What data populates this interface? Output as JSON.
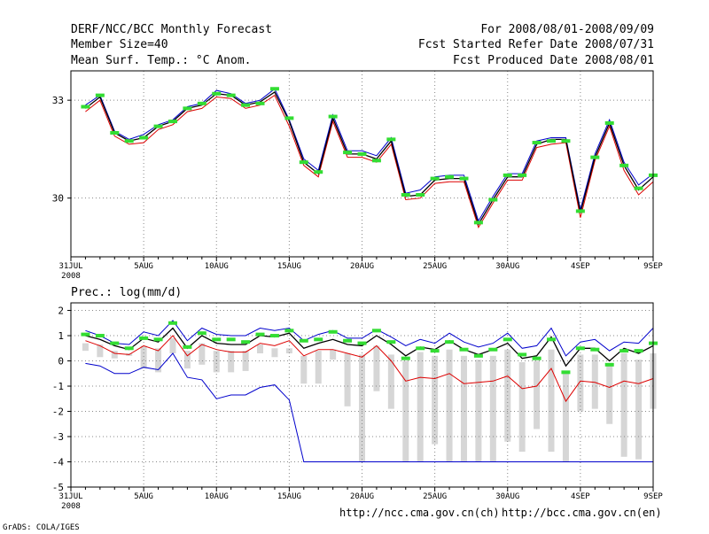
{
  "header": {
    "title": "DERF/NCC/BCC Monthly Forecast",
    "member_size": "Member Size=40",
    "variable": "Mean Surf. Temp.: °C Anom.",
    "period": "For 2008/08/01-2008/09/09",
    "started": "Fcst Started Refer Date 2008/07/31",
    "produced": "Fcst Produced Date 2008/08/01"
  },
  "footer": {
    "url_ncc": "http://ncc.cma.gov.cn(ch)",
    "url_bcc": "http://bcc.cma.gov.cn(en)",
    "credit": "GrADS: COLA/IGES"
  },
  "colors": {
    "mean": "#000000",
    "upper": "#0000cc",
    "lower": "#dd0000",
    "obs": "#33dd33",
    "bar": "#d6d6d6",
    "grid": "#888888"
  },
  "chart_data": [
    {
      "type": "line",
      "title": "Mean Surf. Temp.",
      "ylim": [
        28.2,
        33.9
      ],
      "yticks": [
        30,
        33
      ],
      "x_tick_labels": [
        "31JUL",
        "5AUG",
        "10AUG",
        "15AUG",
        "20AUG",
        "25AUG",
        "30AUG",
        "4SEP",
        "9SEP"
      ],
      "x_tick_days": [
        0,
        5,
        10,
        15,
        20,
        25,
        30,
        35,
        40
      ],
      "year_label": "2008",
      "days": [
        1,
        2,
        3,
        4,
        5,
        6,
        7,
        8,
        9,
        10,
        11,
        12,
        13,
        14,
        15,
        16,
        17,
        18,
        19,
        20,
        21,
        22,
        23,
        24,
        25,
        26,
        27,
        28,
        29,
        30,
        31,
        32,
        33,
        34,
        35,
        36,
        37,
        38,
        39,
        40
      ],
      "series": [
        {
          "name": "mean",
          "values": [
            32.75,
            33.1,
            32.0,
            31.75,
            31.85,
            32.2,
            32.35,
            32.75,
            32.85,
            33.2,
            33.15,
            32.85,
            32.95,
            33.25,
            32.35,
            31.1,
            30.75,
            32.45,
            31.35,
            31.35,
            31.2,
            31.75,
            30.05,
            30.1,
            30.55,
            30.6,
            30.6,
            29.2,
            29.95,
            30.65,
            30.65,
            31.65,
            31.8,
            31.8,
            29.55,
            31.25,
            32.3,
            31.0,
            30.25,
            30.65
          ]
        },
        {
          "name": "upper",
          "values": [
            32.85,
            33.15,
            32.05,
            31.8,
            31.95,
            32.25,
            32.4,
            32.8,
            32.9,
            33.3,
            33.2,
            32.9,
            33.0,
            33.35,
            32.4,
            31.2,
            30.85,
            32.55,
            31.45,
            31.45,
            31.3,
            31.85,
            30.15,
            30.25,
            30.65,
            30.7,
            30.7,
            29.3,
            30.05,
            30.75,
            30.75,
            31.75,
            31.85,
            31.85,
            29.65,
            31.35,
            32.4,
            31.1,
            30.4,
            30.75
          ]
        },
        {
          "name": "lower",
          "values": [
            32.65,
            33.0,
            31.9,
            31.65,
            31.7,
            32.1,
            32.25,
            32.65,
            32.75,
            33.1,
            33.05,
            32.75,
            32.85,
            33.15,
            32.2,
            31.0,
            30.65,
            32.35,
            31.25,
            31.25,
            31.1,
            31.65,
            29.95,
            30.0,
            30.45,
            30.5,
            30.5,
            29.1,
            29.85,
            30.55,
            30.55,
            31.55,
            31.65,
            31.7,
            29.4,
            31.15,
            32.2,
            30.85,
            30.1,
            30.5
          ]
        }
      ],
      "observed": [
        32.8,
        33.15,
        32.0,
        31.75,
        31.85,
        32.2,
        32.35,
        32.75,
        32.9,
        33.2,
        33.15,
        32.85,
        32.9,
        33.35,
        32.45,
        31.1,
        30.8,
        32.5,
        31.4,
        31.35,
        31.15,
        31.8,
        30.1,
        30.1,
        30.6,
        30.65,
        30.6,
        29.25,
        29.95,
        30.7,
        30.7,
        31.7,
        31.75,
        31.75,
        29.6,
        31.25,
        32.3,
        31.0,
        30.3,
        30.7
      ]
    },
    {
      "type": "line",
      "title": "Prec.: log(mm/d)",
      "ylim": [
        -5,
        2.3
      ],
      "yticks": [
        -5,
        -4,
        -3,
        -2,
        -1,
        0,
        1,
        2
      ],
      "x_tick_labels": [
        "31JUL",
        "5AUG",
        "10AUG",
        "15AUG",
        "20AUG",
        "25AUG",
        "30AUG",
        "4SEP",
        "9SEP"
      ],
      "x_tick_days": [
        0,
        5,
        10,
        15,
        20,
        25,
        30,
        35,
        40
      ],
      "year_label": "2008",
      "days": [
        1,
        2,
        3,
        4,
        5,
        6,
        7,
        8,
        9,
        10,
        11,
        12,
        13,
        14,
        15,
        16,
        17,
        18,
        19,
        20,
        21,
        22,
        23,
        24,
        25,
        26,
        27,
        28,
        29,
        30,
        31,
        32,
        33,
        34,
        35,
        36,
        37,
        38,
        39,
        40
      ],
      "series": [
        {
          "name": "mean",
          "values": [
            1.0,
            0.85,
            0.6,
            0.45,
            0.9,
            0.75,
            1.3,
            0.5,
            1.0,
            0.7,
            0.65,
            0.65,
            1.0,
            0.95,
            1.1,
            0.5,
            0.7,
            0.85,
            0.65,
            0.6,
            1.0,
            0.65,
            0.2,
            0.55,
            0.45,
            0.8,
            0.45,
            0.25,
            0.45,
            0.7,
            0.1,
            0.2,
            0.95,
            -0.2,
            0.5,
            0.5,
            0.0,
            0.5,
            0.3,
            0.6
          ]
        },
        {
          "name": "upper",
          "values": [
            1.2,
            1.0,
            0.7,
            0.65,
            1.15,
            1.0,
            1.6,
            0.8,
            1.3,
            1.05,
            1.0,
            1.0,
            1.3,
            1.2,
            1.3,
            0.8,
            1.05,
            1.2,
            0.9,
            0.9,
            1.25,
            0.95,
            0.6,
            0.85,
            0.7,
            1.1,
            0.75,
            0.55,
            0.7,
            1.1,
            0.5,
            0.6,
            1.3,
            0.2,
            0.75,
            0.85,
            0.4,
            0.75,
            0.7,
            1.3
          ]
        },
        {
          "name": "lower",
          "values": [
            0.8,
            0.6,
            0.3,
            0.25,
            0.6,
            0.4,
            1.0,
            0.2,
            0.65,
            0.45,
            0.35,
            0.35,
            0.7,
            0.6,
            0.8,
            0.2,
            0.45,
            0.45,
            0.3,
            0.15,
            0.6,
            0.0,
            -0.8,
            -0.65,
            -0.7,
            -0.5,
            -0.9,
            -0.85,
            -0.8,
            -0.6,
            -1.1,
            -1.0,
            -0.3,
            -1.6,
            -0.8,
            -0.85,
            -1.05,
            -0.8,
            -0.9,
            -0.7
          ]
        },
        {
          "name": "min",
          "values": [
            -0.1,
            -0.2,
            -0.5,
            -0.5,
            -0.25,
            -0.35,
            0.3,
            -0.65,
            -0.75,
            -1.5,
            -1.35,
            -1.35,
            -1.05,
            -0.95,
            -1.55,
            -4.0,
            -4.0,
            -4.0,
            -4.0,
            -4.0,
            -4.0,
            -4.0,
            -4.0,
            -4.0,
            -4.0,
            -4.0,
            -4.0,
            -4.0,
            -4.0,
            -4.0,
            -4.0,
            -4.0,
            -4.0,
            -4.0,
            -4.0,
            -4.0,
            -4.0,
            -4.0,
            -4.0,
            -4.0
          ]
        }
      ],
      "observed": [
        1.05,
        1.0,
        0.7,
        0.5,
        0.9,
        0.85,
        1.5,
        0.55,
        1.1,
        0.85,
        0.85,
        0.75,
        1.05,
        1.0,
        1.2,
        0.8,
        0.85,
        1.15,
        0.8,
        0.7,
        1.2,
        0.75,
        0.1,
        0.5,
        0.4,
        0.75,
        0.45,
        0.2,
        0.45,
        0.85,
        0.25,
        0.1,
        0.85,
        -0.45,
        0.5,
        0.45,
        -0.15,
        0.4,
        0.4,
        0.7
      ],
      "bars": {
        "top": [
          0.7,
          0.65,
          0.4,
          0.3,
          0.6,
          0.5,
          0.9,
          0.4,
          0.7,
          0.4,
          0.4,
          0.4,
          0.65,
          0.5,
          0.5,
          0.2,
          0.4,
          0.45,
          0.3,
          0.25,
          0.6,
          0.25,
          0.0,
          0.35,
          0.2,
          0.45,
          0.2,
          0.05,
          0.2,
          0.45,
          -0.05,
          0.0,
          0.45,
          -0.4,
          0.25,
          0.25,
          -0.1,
          0.3,
          0.05,
          0.3
        ],
        "bottom": [
          0.4,
          0.15,
          0.1,
          0.2,
          -0.3,
          -0.45,
          0.3,
          -0.3,
          -0.15,
          -0.45,
          -0.45,
          -0.4,
          0.3,
          0.15,
          0.3,
          -0.9,
          -0.9,
          0.05,
          -1.8,
          -4.0,
          -1.2,
          -1.9,
          -4.0,
          -4.0,
          -3.3,
          -4.0,
          -4.0,
          -4.0,
          -4.0,
          -3.2,
          -3.6,
          -2.7,
          -3.6,
          -4.0,
          -2.0,
          -1.9,
          -2.5,
          -3.8,
          -3.9,
          -1.9
        ]
      }
    }
  ]
}
